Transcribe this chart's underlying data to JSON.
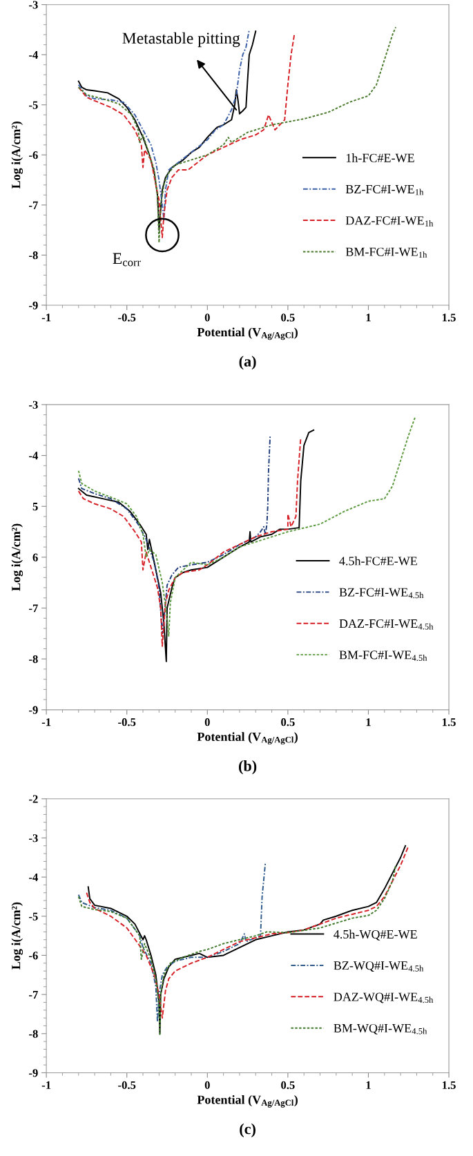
{
  "chart_data": [
    {
      "type": "line",
      "xlabel": "Potential (V$_{Ag/AgCl}$)",
      "ylabel": "Log i(A/cm²)",
      "xlim": [
        -1,
        1.5
      ],
      "ylim": [
        -9,
        -3
      ],
      "xticks": [
        -1,
        {
          "value": -0.9,
          "label": null
        },
        {
          "value": -0.8,
          "label": null
        },
        {
          "value": -0.7,
          "label": null
        },
        {
          "value": -0.6,
          "label": null
        },
        -0.5,
        {
          "value": -0.4,
          "label": null
        },
        {
          "value": -0.3,
          "label": null
        },
        {
          "value": -0.2,
          "label": null
        },
        {
          "value": -0.1,
          "label": null
        },
        0,
        {
          "value": 0.1,
          "label": null
        },
        {
          "value": 0.2,
          "label": null
        },
        {
          "value": 0.3,
          "label": null
        },
        {
          "value": 0.4,
          "label": null
        },
        0.5,
        {
          "value": 0.6,
          "label": null
        },
        {
          "value": 0.7,
          "label": null
        },
        {
          "value": 0.8,
          "label": null
        },
        {
          "value": 0.9,
          "label": null
        },
        1,
        {
          "value": 1.1,
          "label": null
        },
        {
          "value": 1.2,
          "label": null
        },
        {
          "value": 1.3,
          "label": null
        },
        {
          "value": 1.4,
          "label": null
        },
        1.5
      ],
      "yticks": [
        -9,
        {
          "value": -8.8,
          "label": null
        },
        {
          "value": -8.6,
          "label": null
        },
        {
          "value": -8.4,
          "label": null
        },
        {
          "value": -8.2,
          "label": null
        },
        -8,
        {
          "value": -7.8,
          "label": null
        },
        {
          "value": -7.6,
          "label": null
        },
        {
          "value": -7.4,
          "label": null
        },
        {
          "value": -7.2,
          "label": null
        },
        -7,
        {
          "value": -6.8,
          "label": null
        },
        {
          "value": -6.6,
          "label": null
        },
        {
          "value": -6.4,
          "label": null
        },
        {
          "value": -6.2,
          "label": null
        },
        -6,
        {
          "value": -5.8,
          "label": null
        },
        {
          "value": -5.6,
          "label": null
        },
        {
          "value": -5.4,
          "label": null
        },
        {
          "value": -5.2,
          "label": null
        },
        -5,
        {
          "value": -4.8,
          "label": null
        },
        {
          "value": -4.6,
          "label": null
        },
        {
          "value": -4.4,
          "label": null
        },
        {
          "value": -4.2,
          "label": null
        },
        -4,
        {
          "value": -3.8,
          "label": null
        },
        {
          "value": -3.6,
          "label": null
        },
        {
          "value": -3.4,
          "label": null
        },
        {
          "value": -3.2,
          "label": null
        },
        -3
      ],
      "grid": false,
      "legend": "right",
      "marker": "none",
      "annotations": [
        {
          "text": "Metastable pitting",
          "x": 0.18,
          "y": -5.1
        },
        {
          "text": "E$_{corr}$",
          "x": -0.28,
          "y": -7.6
        },
        "(a)"
      ],
      "series": [
        {
          "name": "1h-FC#E-WE",
          "color": "#000000",
          "line_style": "solid",
          "x": [
            -0.8,
            -0.78,
            -0.75,
            -0.7,
            -0.62,
            -0.55,
            -0.5,
            -0.45,
            -0.4,
            -0.36,
            -0.33,
            -0.31,
            -0.305,
            -0.3,
            -0.29,
            -0.28,
            -0.26,
            -0.22,
            -0.15,
            -0.1,
            -0.05,
            0.0,
            0.05,
            0.06,
            0.1,
            0.15,
            0.17,
            0.18,
            0.19,
            0.2,
            0.22,
            0.24,
            0.25,
            0.26,
            0.28,
            0.3
          ],
          "values": [
            -4.53,
            -4.65,
            -4.7,
            -4.72,
            -4.76,
            -4.88,
            -5.05,
            -5.3,
            -5.65,
            -6.0,
            -6.35,
            -6.8,
            -7.1,
            -7.5,
            -7.1,
            -6.7,
            -6.45,
            -6.25,
            -6.1,
            -5.95,
            -5.85,
            -5.65,
            -5.48,
            -5.45,
            -5.4,
            -5.3,
            -5.0,
            -4.7,
            -4.9,
            -5.18,
            -5.12,
            -5.05,
            -4.5,
            -4.0,
            -3.8,
            -3.53
          ]
        },
        {
          "name": "BZ-FC#I-WE$_{1h}$",
          "color": "#3a5fa8",
          "line_style": "dashdot",
          "x": [
            -0.8,
            -0.75,
            -0.7,
            -0.6,
            -0.52,
            -0.45,
            -0.4,
            -0.35,
            -0.32,
            -0.3,
            -0.28,
            -0.27,
            -0.26,
            -0.24,
            -0.2,
            -0.1,
            0.0,
            0.05,
            0.1,
            0.15,
            0.18,
            0.2,
            0.22,
            0.24,
            0.26
          ],
          "values": [
            -4.6,
            -4.82,
            -4.88,
            -4.9,
            -4.95,
            -5.2,
            -5.5,
            -5.8,
            -6.15,
            -6.5,
            -7.0,
            -7.3,
            -6.7,
            -6.3,
            -6.2,
            -5.95,
            -5.7,
            -5.5,
            -5.4,
            -5.1,
            -4.8,
            -4.3,
            -4.0,
            -3.85,
            -3.5
          ]
        },
        {
          "name": "DAZ-FC#I-WE$_{1h}$",
          "color": "#d71f26",
          "line_style": "dashed",
          "x": [
            -0.8,
            -0.75,
            -0.7,
            -0.6,
            -0.52,
            -0.45,
            -0.41,
            -0.4,
            -0.39,
            -0.35,
            -0.32,
            -0.3,
            -0.28,
            -0.27,
            -0.25,
            -0.22,
            -0.18,
            -0.12,
            -0.08,
            0.0,
            0.1,
            0.2,
            0.3,
            0.35,
            0.38,
            0.4,
            0.42,
            0.45,
            0.48,
            0.5,
            0.52,
            0.54
          ],
          "values": [
            -4.65,
            -4.85,
            -4.92,
            -5.05,
            -5.2,
            -5.5,
            -5.8,
            -6.25,
            -5.9,
            -6.1,
            -6.6,
            -6.9,
            -7.65,
            -7.2,
            -6.7,
            -6.45,
            -6.3,
            -6.3,
            -6.2,
            -6.0,
            -5.85,
            -5.7,
            -5.6,
            -5.5,
            -5.2,
            -5.35,
            -5.5,
            -5.4,
            -5.3,
            -4.6,
            -4.0,
            -3.6
          ]
        },
        {
          "name": "BM-FC#I-WE$_{1h}$",
          "color": "#4a7a2c",
          "line_style": "dotted",
          "x": [
            -0.8,
            -0.75,
            -0.65,
            -0.55,
            -0.47,
            -0.43,
            -0.42,
            -0.4,
            -0.37,
            -0.33,
            -0.31,
            -0.3,
            -0.29,
            -0.27,
            -0.25,
            -0.2,
            -0.1,
            0.0,
            0.1,
            0.13,
            0.15,
            0.25,
            0.4,
            0.6,
            0.75,
            0.88,
            1.0,
            1.05,
            1.1,
            1.15,
            1.17
          ],
          "values": [
            -4.65,
            -4.8,
            -4.88,
            -4.98,
            -5.2,
            -5.5,
            -5.75,
            -5.6,
            -5.9,
            -6.3,
            -6.8,
            -7.75,
            -7.0,
            -6.6,
            -6.4,
            -6.2,
            -6.1,
            -6.0,
            -5.8,
            -5.65,
            -5.75,
            -5.55,
            -5.4,
            -5.28,
            -5.15,
            -4.95,
            -4.82,
            -4.6,
            -4.1,
            -3.6,
            -3.45
          ]
        }
      ]
    },
    {
      "type": "line",
      "xlabel": "Potential (V$_{Ag/AgCl}$)",
      "ylabel": "Log i(A/cm²)",
      "xlim": [
        -1,
        1.5
      ],
      "ylim": [
        -9,
        -3
      ],
      "xticks": [
        -1,
        {
          "value": -0.9,
          "label": null
        },
        {
          "value": -0.8,
          "label": null
        },
        {
          "value": -0.7,
          "label": null
        },
        {
          "value": -0.6,
          "label": null
        },
        -0.5,
        {
          "value": -0.4,
          "label": null
        },
        {
          "value": -0.3,
          "label": null
        },
        {
          "value": -0.2,
          "label": null
        },
        {
          "value": -0.1,
          "label": null
        },
        0,
        {
          "value": 0.1,
          "label": null
        },
        {
          "value": 0.2,
          "label": null
        },
        {
          "value": 0.3,
          "label": null
        },
        {
          "value": 0.4,
          "label": null
        },
        0.5,
        {
          "value": 0.6,
          "label": null
        },
        {
          "value": 0.7,
          "label": null
        },
        {
          "value": 0.8,
          "label": null
        },
        {
          "value": 0.9,
          "label": null
        },
        1,
        {
          "value": 1.1,
          "label": null
        },
        {
          "value": 1.2,
          "label": null
        },
        {
          "value": 1.3,
          "label": null
        },
        {
          "value": 1.4,
          "label": null
        },
        1.5
      ],
      "yticks": [
        -9,
        {
          "value": -8.8,
          "label": null
        },
        {
          "value": -8.6,
          "label": null
        },
        {
          "value": -8.4,
          "label": null
        },
        {
          "value": -8.2,
          "label": null
        },
        -8,
        {
          "value": -7.8,
          "label": null
        },
        {
          "value": -7.6,
          "label": null
        },
        {
          "value": -7.4,
          "label": null
        },
        {
          "value": -7.2,
          "label": null
        },
        -7,
        {
          "value": -6.8,
          "label": null
        },
        {
          "value": -6.6,
          "label": null
        },
        {
          "value": -6.4,
          "label": null
        },
        {
          "value": -6.2,
          "label": null
        },
        {
          "value": -6,
          "label": "6"
        },
        {
          "value": -5.8,
          "label": null
        },
        {
          "value": -5.6,
          "label": null
        },
        {
          "value": -5.4,
          "label": null
        },
        {
          "value": -5.2,
          "label": null
        },
        {
          "value": -5,
          "label": "5"
        },
        {
          "value": -4.8,
          "label": null
        },
        {
          "value": -4.6,
          "label": null
        },
        {
          "value": -4.4,
          "label": null
        },
        {
          "value": -4.2,
          "label": null
        },
        -4,
        {
          "value": -3.8,
          "label": null
        },
        {
          "value": -3.6,
          "label": null
        },
        {
          "value": -3.4,
          "label": null
        },
        {
          "value": -3.2,
          "label": null
        },
        -3
      ],
      "grid": false,
      "legend": "right",
      "marker": "none",
      "annotations": [
        "(b)"
      ],
      "series": [
        {
          "name": "4.5h-FC#E-WE",
          "color": "#000000",
          "line_style": "solid",
          "x": [
            -0.8,
            -0.75,
            -0.65,
            -0.55,
            -0.48,
            -0.42,
            -0.38,
            -0.37,
            -0.36,
            -0.33,
            -0.29,
            -0.27,
            -0.255,
            -0.25,
            -0.22,
            -0.2,
            -0.15,
            -0.1,
            0.0,
            0.1,
            0.2,
            0.26,
            0.265,
            0.27,
            0.33,
            0.4,
            0.45,
            0.5,
            0.57,
            0.58,
            0.6,
            0.63,
            0.66
          ],
          "values": [
            -4.65,
            -4.78,
            -4.85,
            -4.92,
            -5.1,
            -5.35,
            -5.55,
            -5.85,
            -5.65,
            -6.1,
            -6.7,
            -7.3,
            -8.05,
            -7.0,
            -6.6,
            -6.4,
            -6.3,
            -6.25,
            -6.2,
            -6.0,
            -5.8,
            -5.7,
            -5.5,
            -5.7,
            -5.6,
            -5.55,
            -5.45,
            -5.45,
            -5.42,
            -4.5,
            -3.8,
            -3.55,
            -3.5
          ]
        },
        {
          "name": "BZ-FC#I-WE$_{4.5h}$",
          "color": "#1f3d7a",
          "line_style": "dashdot",
          "x": [
            -0.8,
            -0.78,
            -0.7,
            -0.6,
            -0.5,
            -0.43,
            -0.38,
            -0.33,
            -0.3,
            -0.28,
            -0.26,
            -0.25,
            -0.22,
            -0.18,
            -0.1,
            0.0,
            0.1,
            0.2,
            0.3,
            0.33,
            0.35,
            0.36,
            0.37,
            0.375,
            0.38,
            0.39
          ],
          "values": [
            -4.45,
            -4.65,
            -4.75,
            -4.85,
            -5.05,
            -5.35,
            -5.65,
            -6.1,
            -6.6,
            -7.5,
            -6.9,
            -6.55,
            -6.35,
            -6.2,
            -6.15,
            -6.1,
            -5.95,
            -5.75,
            -5.6,
            -5.5,
            -5.4,
            -5.55,
            -5.35,
            -5.0,
            -4.3,
            -3.6
          ]
        },
        {
          "name": "DAZ-FC#I-WE$_{4.5h}$",
          "color": "#d71f26",
          "line_style": "dashed",
          "x": [
            -0.8,
            -0.77,
            -0.7,
            -0.6,
            -0.52,
            -0.45,
            -0.41,
            -0.4,
            -0.38,
            -0.35,
            -0.31,
            -0.29,
            -0.28,
            -0.26,
            -0.24,
            -0.2,
            -0.15,
            -0.05,
            0.0,
            0.1,
            0.2,
            0.3,
            0.4,
            0.5,
            0.5,
            0.52,
            0.55,
            0.56,
            0.58
          ],
          "values": [
            -4.7,
            -4.85,
            -4.95,
            -5.05,
            -5.2,
            -5.5,
            -5.7,
            -6.25,
            -5.9,
            -6.2,
            -6.6,
            -7.0,
            -7.75,
            -6.9,
            -6.65,
            -6.4,
            -6.3,
            -6.25,
            -6.15,
            -5.9,
            -5.75,
            -5.6,
            -5.5,
            -5.45,
            -5.15,
            -5.4,
            -5.2,
            -4.5,
            -3.65
          ]
        },
        {
          "name": "BM-FC#I-WE$_{4.5h}$",
          "color": "#5a9a3c",
          "line_style": "dotted",
          "x": [
            -0.8,
            -0.78,
            -0.7,
            -0.6,
            -0.5,
            -0.44,
            -0.4,
            -0.38,
            -0.36,
            -0.32,
            -0.28,
            -0.25,
            -0.24,
            -0.23,
            -0.2,
            -0.1,
            0.0,
            0.1,
            0.2,
            0.3,
            0.5,
            0.7,
            0.85,
            1.0,
            1.1,
            1.15,
            1.2,
            1.25,
            1.29
          ],
          "values": [
            -4.3,
            -4.55,
            -4.7,
            -4.82,
            -4.95,
            -5.2,
            -5.55,
            -6.0,
            -5.85,
            -5.95,
            -6.5,
            -7.2,
            -7.55,
            -6.9,
            -6.4,
            -6.1,
            -6.15,
            -6.0,
            -5.8,
            -5.7,
            -5.5,
            -5.35,
            -5.1,
            -4.9,
            -4.85,
            -4.6,
            -4.1,
            -3.6,
            -3.25
          ]
        }
      ]
    },
    {
      "type": "line",
      "xlabel": "Potential (V$_{Ag/AgCl}$)",
      "ylabel": "Log i(A/cm²)",
      "xlim": [
        -1,
        1.5
      ],
      "ylim": [
        -9,
        -2
      ],
      "xticks": [
        -1,
        {
          "value": -0.9,
          "label": null
        },
        {
          "value": -0.8,
          "label": null
        },
        {
          "value": -0.7,
          "label": null
        },
        {
          "value": -0.6,
          "label": null
        },
        -0.5,
        {
          "value": -0.4,
          "label": null
        },
        {
          "value": -0.3,
          "label": null
        },
        {
          "value": -0.2,
          "label": null
        },
        {
          "value": -0.1,
          "label": null
        },
        0,
        {
          "value": 0.1,
          "label": null
        },
        {
          "value": 0.2,
          "label": null
        },
        {
          "value": 0.3,
          "label": null
        },
        {
          "value": 0.4,
          "label": null
        },
        0.5,
        {
          "value": 0.6,
          "label": null
        },
        {
          "value": 0.7,
          "label": null
        },
        {
          "value": 0.8,
          "label": null
        },
        {
          "value": 0.9,
          "label": null
        },
        1,
        {
          "value": 1.1,
          "label": null
        },
        {
          "value": 1.2,
          "label": null
        },
        {
          "value": 1.3,
          "label": null
        },
        {
          "value": 1.4,
          "label": null
        },
        1.5
      ],
      "yticks": [
        -9,
        {
          "value": -8.8,
          "label": null
        },
        {
          "value": -8.6,
          "label": null
        },
        {
          "value": -8.4,
          "label": null
        },
        {
          "value": -8.2,
          "label": null
        },
        -8,
        {
          "value": -7.8,
          "label": null
        },
        {
          "value": -7.6,
          "label": null
        },
        {
          "value": -7.4,
          "label": null
        },
        {
          "value": -7.2,
          "label": null
        },
        -7,
        {
          "value": -6.8,
          "label": null
        },
        {
          "value": -6.6,
          "label": null
        },
        {
          "value": -6.4,
          "label": null
        },
        {
          "value": -6.2,
          "label": null
        },
        -6,
        {
          "value": -5.8,
          "label": null
        },
        {
          "value": -5.6,
          "label": null
        },
        {
          "value": -5.4,
          "label": null
        },
        {
          "value": -5.2,
          "label": null
        },
        -5,
        {
          "value": -4.8,
          "label": null
        },
        {
          "value": -4.6,
          "label": null
        },
        {
          "value": -4.4,
          "label": null
        },
        {
          "value": -4.2,
          "label": null
        },
        -4,
        {
          "value": -3.8,
          "label": null
        },
        {
          "value": -3.6,
          "label": null
        },
        {
          "value": -3.4,
          "label": null
        },
        {
          "value": -3.2,
          "label": null
        },
        -3,
        {
          "value": -2.8,
          "label": null
        },
        {
          "value": -2.6,
          "label": null
        },
        {
          "value": -2.4,
          "label": null
        },
        {
          "value": -2.2,
          "label": null
        },
        -2
      ],
      "grid": false,
      "legend": "right",
      "marker": "none",
      "annotations": [
        "(c)"
      ],
      "series": [
        {
          "name": "4.5h-WQ#E-WE",
          "color": "#000000",
          "line_style": "solid",
          "x": [
            -0.74,
            -0.73,
            -0.7,
            -0.6,
            -0.5,
            -0.45,
            -0.4,
            -0.39,
            -0.38,
            -0.35,
            -0.32,
            -0.3,
            -0.295,
            -0.29,
            -0.27,
            -0.24,
            -0.2,
            -0.1,
            -0.05,
            0.0,
            0.1,
            0.2,
            0.3,
            0.4,
            0.5,
            0.6,
            0.7,
            0.72,
            0.8,
            0.9,
            1.0,
            1.05,
            1.1,
            1.15,
            1.2,
            1.23
          ],
          "values": [
            -4.25,
            -4.55,
            -4.72,
            -4.8,
            -5.0,
            -5.2,
            -5.6,
            -5.5,
            -5.6,
            -6.0,
            -6.5,
            -7.2,
            -8.0,
            -7.0,
            -6.6,
            -6.3,
            -6.1,
            -6.0,
            -5.95,
            -6.05,
            -6.0,
            -5.8,
            -5.6,
            -5.5,
            -5.4,
            -5.35,
            -5.2,
            -5.1,
            -5.0,
            -4.85,
            -4.75,
            -4.65,
            -4.3,
            -3.9,
            -3.5,
            -3.2
          ]
        },
        {
          "name": "BZ-WQ#I-WE$_{4.5h}$",
          "color": "#2e5a8c",
          "line_style": "dashdot",
          "x": [
            -0.8,
            -0.78,
            -0.7,
            -0.6,
            -0.5,
            -0.42,
            -0.4,
            -0.35,
            -0.32,
            -0.31,
            -0.3,
            -0.28,
            -0.25,
            -0.2,
            -0.1,
            0.0,
            0.1,
            0.2,
            0.23,
            0.24,
            0.3,
            0.33,
            0.34,
            0.36
          ],
          "values": [
            -4.45,
            -4.65,
            -4.78,
            -4.85,
            -5.05,
            -5.5,
            -5.8,
            -6.2,
            -6.8,
            -7.7,
            -7.0,
            -6.5,
            -6.3,
            -6.15,
            -6.05,
            -6.05,
            -5.9,
            -5.7,
            -5.45,
            -5.65,
            -5.55,
            -5.5,
            -4.5,
            -3.65
          ]
        },
        {
          "name": "DAZ-WQ#I-WE$_{4.5h}$",
          "color": "#d71f26",
          "line_style": "dashed",
          "x": [
            -0.75,
            -0.73,
            -0.7,
            -0.6,
            -0.5,
            -0.43,
            -0.38,
            -0.33,
            -0.3,
            -0.28,
            -0.26,
            -0.24,
            -0.2,
            -0.1,
            0.0,
            0.1,
            0.2,
            0.3,
            0.4,
            0.5,
            0.6,
            0.7,
            0.8,
            0.9,
            1.0,
            1.05,
            1.1,
            1.15,
            1.2,
            1.25
          ],
          "values": [
            -4.4,
            -4.65,
            -4.8,
            -5.0,
            -5.3,
            -5.7,
            -6.0,
            -6.5,
            -7.0,
            -7.6,
            -6.9,
            -6.6,
            -6.4,
            -6.2,
            -6.05,
            -5.85,
            -5.65,
            -5.55,
            -5.45,
            -5.42,
            -5.35,
            -5.2,
            -5.05,
            -4.95,
            -4.85,
            -4.75,
            -4.5,
            -4.1,
            -3.7,
            -3.2
          ]
        },
        {
          "name": "BM-WQ#I-WE$_{4.5h}$",
          "color": "#3f7a2a",
          "line_style": "dotted",
          "x": [
            -0.8,
            -0.78,
            -0.7,
            -0.6,
            -0.5,
            -0.42,
            -0.41,
            -0.39,
            -0.35,
            -0.32,
            -0.3,
            -0.295,
            -0.29,
            -0.27,
            -0.23,
            -0.15,
            -0.05,
            0.0,
            0.1,
            0.2,
            0.3,
            0.37,
            0.5,
            0.7,
            0.9,
            1.0,
            1.05,
            1.1,
            1.15,
            1.17
          ],
          "values": [
            -4.5,
            -4.75,
            -4.83,
            -4.88,
            -5.05,
            -5.5,
            -6.1,
            -5.7,
            -6.1,
            -6.6,
            -7.3,
            -8.05,
            -7.0,
            -6.5,
            -6.2,
            -6.05,
            -5.9,
            -5.85,
            -5.7,
            -5.6,
            -5.5,
            -5.4,
            -5.42,
            -5.3,
            -5.05,
            -4.98,
            -4.85,
            -4.55,
            -4.1,
            -3.7
          ]
        }
      ]
    }
  ]
}
